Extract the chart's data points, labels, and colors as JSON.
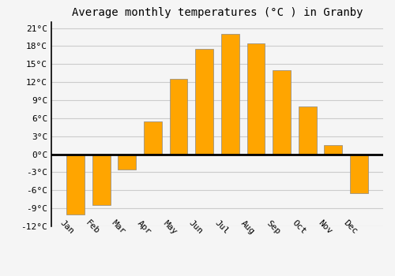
{
  "title": "Average monthly temperatures (°C ) in Granby",
  "months": [
    "Jan",
    "Feb",
    "Mar",
    "Apr",
    "May",
    "Jun",
    "Jul",
    "Aug",
    "Sep",
    "Oct",
    "Nov",
    "Dec"
  ],
  "values": [
    -10.0,
    -8.5,
    -2.5,
    5.5,
    12.5,
    17.5,
    20.0,
    18.5,
    14.0,
    8.0,
    1.5,
    -6.5
  ],
  "bar_color": "#FFA500",
  "bar_edge_color": "#888888",
  "background_color": "#F5F5F5",
  "grid_color": "#CCCCCC",
  "title_fontsize": 10,
  "tick_fontsize": 8,
  "ylim": [
    -12,
    22
  ],
  "yticks": [
    -12,
    -9,
    -6,
    -3,
    0,
    3,
    6,
    9,
    12,
    15,
    18,
    21
  ]
}
